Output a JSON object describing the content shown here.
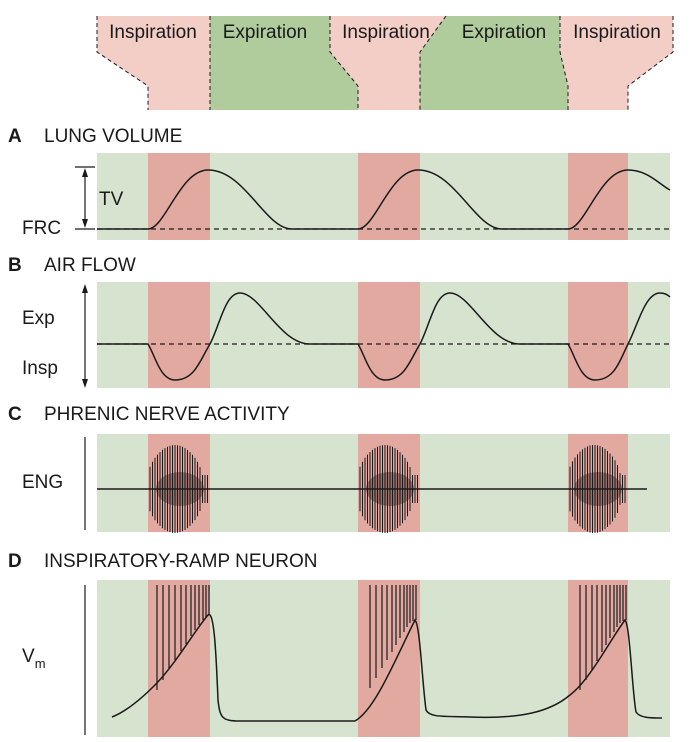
{
  "colors": {
    "inspiration_header": "#f2cec6",
    "expiration_header": "#b0cc9d",
    "inspiration_band": "#e2a9a0",
    "panel_background": "#d6e4cf",
    "trace": "#1a1a1a"
  },
  "phases": {
    "inspiration_label": "Inspiration",
    "expiration_label": "Expiration"
  },
  "panel_a": {
    "letter": "A",
    "title": "LUNG VOLUME",
    "tv_label": "TV",
    "frc_label": "FRC"
  },
  "panel_b": {
    "letter": "B",
    "title": "AIR FLOW",
    "exp_label": "Exp",
    "insp_label": "Insp"
  },
  "panel_c": {
    "letter": "C",
    "title": "PHRENIC NERVE ACTIVITY",
    "eng_label": "ENG"
  },
  "panel_d": {
    "letter": "D",
    "title": "INSPIRATORY-RAMP NEURON",
    "vm_label": "V",
    "vm_subscript": "m"
  }
}
